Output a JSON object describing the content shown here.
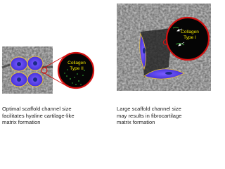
{
  "panels": [
    {
      "label_lines": [
        "Collagen",
        "Type II"
      ],
      "caption_lines": [
        "Optimal scaffold channel size",
        "facilitates hyaline cartilage-like",
        "matrix formation"
      ]
    },
    {
      "label_lines": [
        "Collagen",
        "Type I"
      ],
      "caption_lines": [
        "Large scaffold channel size",
        "may results in fibrocartilage",
        "matrix formation"
      ]
    }
  ]
}
